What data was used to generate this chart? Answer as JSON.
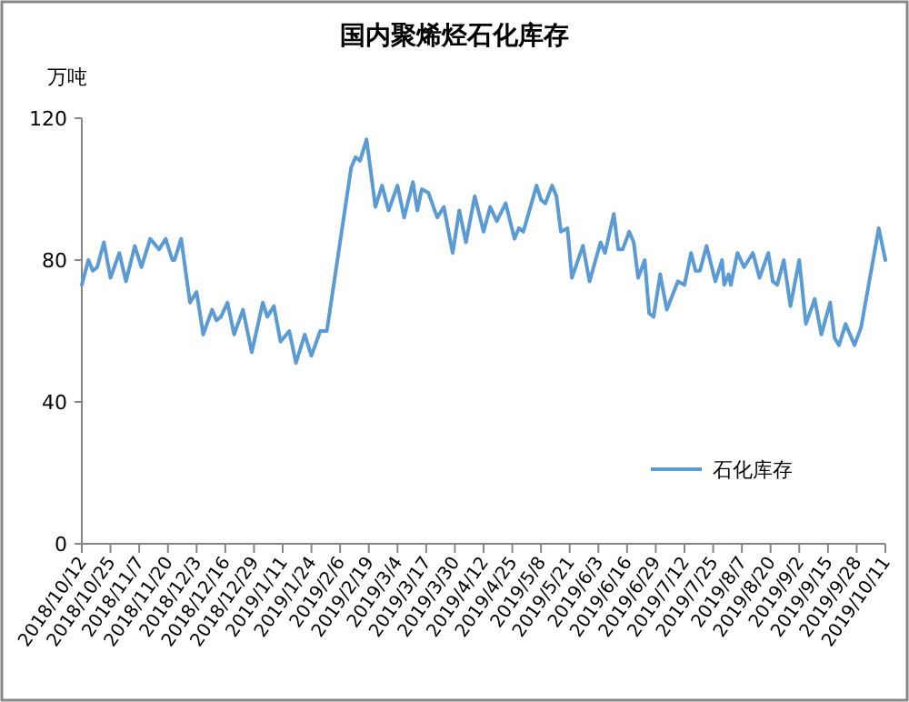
{
  "chart_data": {
    "type": "line",
    "title": "国内聚烯烃石化库存",
    "ylabel": "万吨",
    "x": [
      "2018-10-12",
      "2018-10-15",
      "2018-10-17",
      "2018-10-19",
      "2018-10-22",
      "2018-10-25",
      "2018-10-29",
      "2018-11-01",
      "2018-11-05",
      "2018-11-08",
      "2018-11-12",
      "2018-11-16",
      "2018-11-19",
      "2018-11-22",
      "2018-11-23",
      "2018-11-26",
      "2018-11-30",
      "2018-12-03",
      "2018-12-06",
      "2018-12-10",
      "2018-12-12",
      "2018-12-14",
      "2018-12-17",
      "2018-12-20",
      "2018-12-24",
      "2018-12-28",
      "2019-01-02",
      "2019-01-04",
      "2019-01-07",
      "2019-01-10",
      "2019-01-14",
      "2019-01-17",
      "2019-01-21",
      "2019-01-24",
      "2019-01-28",
      "2019-01-31",
      "2019-02-11",
      "2019-02-13",
      "2019-02-15",
      "2019-02-18",
      "2019-02-22",
      "2019-02-25",
      "2019-02-28",
      "2019-03-04",
      "2019-03-07",
      "2019-03-11",
      "2019-03-13",
      "2019-03-15",
      "2019-03-18",
      "2019-03-22",
      "2019-03-25",
      "2019-03-29",
      "2019-04-01",
      "2019-04-04",
      "2019-04-08",
      "2019-04-12",
      "2019-04-15",
      "2019-04-18",
      "2019-04-22",
      "2019-04-26",
      "2019-04-28",
      "2019-04-30",
      "2019-05-06",
      "2019-05-08",
      "2019-05-10",
      "2019-05-13",
      "2019-05-15",
      "2019-05-17",
      "2019-05-20",
      "2019-05-22",
      "2019-05-27",
      "2019-05-30",
      "2019-06-04",
      "2019-06-06",
      "2019-06-10",
      "2019-06-12",
      "2019-06-14",
      "2019-06-17",
      "2019-06-19",
      "2019-06-21",
      "2019-06-24",
      "2019-06-26",
      "2019-06-28",
      "2019-07-01",
      "2019-07-04",
      "2019-07-09",
      "2019-07-12",
      "2019-07-15",
      "2019-07-17",
      "2019-07-19",
      "2019-07-22",
      "2019-07-26",
      "2019-07-29",
      "2019-07-30",
      "2019-08-01",
      "2019-08-02",
      "2019-08-05",
      "2019-08-08",
      "2019-08-12",
      "2019-08-15",
      "2019-08-19",
      "2019-08-21",
      "2019-08-23",
      "2019-08-26",
      "2019-08-29",
      "2019-09-02",
      "2019-09-05",
      "2019-09-09",
      "2019-09-12",
      "2019-09-16",
      "2019-09-18",
      "2019-09-20",
      "2019-09-23",
      "2019-09-27",
      "2019-09-30",
      "2019-10-08",
      "2019-10-11"
    ],
    "series": [
      {
        "name": "石化库存",
        "color": "#5b9bd5",
        "values": [
          73,
          80,
          77,
          78,
          85,
          75,
          82,
          74,
          84,
          78,
          86,
          83,
          86,
          80,
          80,
          86,
          68,
          71,
          59,
          66,
          63,
          64,
          68,
          59,
          66,
          54,
          68,
          64,
          67,
          57,
          60,
          51,
          59,
          53,
          60,
          60,
          106,
          109,
          108,
          114,
          95,
          101,
          94,
          101,
          92,
          102,
          94,
          100,
          99,
          92,
          95,
          82,
          94,
          85,
          98,
          88,
          95,
          91,
          96,
          86,
          89,
          88,
          101,
          97,
          96,
          101,
          98,
          88,
          89,
          75,
          84,
          74,
          85,
          82,
          93,
          83,
          83,
          88,
          85,
          75,
          80,
          65,
          64,
          76,
          66,
          74,
          73,
          82,
          77,
          77,
          84,
          74,
          80,
          73,
          76,
          73,
          82,
          78,
          82,
          75,
          82,
          74,
          73,
          80,
          67,
          80,
          62,
          69,
          59,
          68,
          58,
          56,
          62,
          56,
          61,
          89,
          80
        ]
      }
    ],
    "xlim": [
      "2018-10-12",
      "2019-10-11"
    ],
    "xticks": [
      {
        "value": "2018-10-12",
        "label": "2018/10/12"
      },
      {
        "value": "2018-10-25",
        "label": "2018/10/25"
      },
      {
        "value": "2018-11-07",
        "label": "2018/11/7"
      },
      {
        "value": "2018-11-20",
        "label": "2018/11/20"
      },
      {
        "value": "2018-12-03",
        "label": "2018/12/3"
      },
      {
        "value": "2018-12-16",
        "label": "2018/12/16"
      },
      {
        "value": "2018-12-29",
        "label": "2018/12/29"
      },
      {
        "value": "2019-01-11",
        "label": "2019/1/11"
      },
      {
        "value": "2019-01-24",
        "label": "2019/1/24"
      },
      {
        "value": "2019-02-06",
        "label": "2019/2/6"
      },
      {
        "value": "2019-02-19",
        "label": "2019/2/19"
      },
      {
        "value": "2019-03-04",
        "label": "2019/3/4"
      },
      {
        "value": "2019-03-17",
        "label": "2019/3/17"
      },
      {
        "value": "2019-03-30",
        "label": "2019/3/30"
      },
      {
        "value": "2019-04-12",
        "label": "2019/4/12"
      },
      {
        "value": "2019-04-25",
        "label": "2019/4/25"
      },
      {
        "value": "2019-05-08",
        "label": "2019/5/8"
      },
      {
        "value": "2019-05-21",
        "label": "2019/5/21"
      },
      {
        "value": "2019-06-03",
        "label": "2019/6/3"
      },
      {
        "value": "2019-06-16",
        "label": "2019/6/16"
      },
      {
        "value": "2019-06-29",
        "label": "2019/6/29"
      },
      {
        "value": "2019-07-12",
        "label": "2019/7/12"
      },
      {
        "value": "2019-07-25",
        "label": "2019/7/25"
      },
      {
        "value": "2019-08-07",
        "label": "2019/8/7"
      },
      {
        "value": "2019-08-20",
        "label": "2019/8/20"
      },
      {
        "value": "2019-09-02",
        "label": "2019/9/2"
      },
      {
        "value": "2019-09-15",
        "label": "2019/9/15"
      },
      {
        "value": "2019-09-28",
        "label": "2019/9/28"
      },
      {
        "value": "2019-10-11",
        "label": "2019/10/11"
      }
    ],
    "ylim": [
      0,
      120
    ],
    "yticks": [
      0,
      40,
      80,
      120
    ],
    "grid": false,
    "legend": "bottom right",
    "marker": "none",
    "line_style": "solid"
  }
}
